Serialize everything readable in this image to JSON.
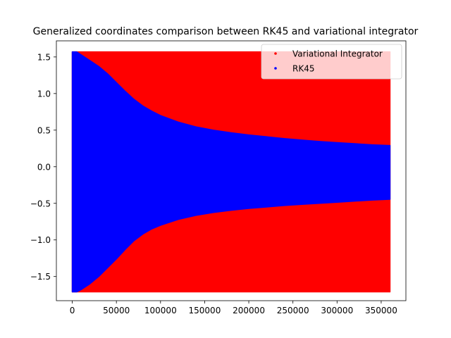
{
  "chart_data": {
    "type": "scatter",
    "title": "Generalized coordinates comparison between RK45 and variational integrator",
    "xlabel": "",
    "ylabel": "",
    "xlim": [
      -18000,
      378000
    ],
    "ylim": [
      -1.83,
      1.72
    ],
    "x_ticks": [
      0,
      50000,
      100000,
      150000,
      200000,
      250000,
      300000,
      350000
    ],
    "x_tick_labels": [
      "0",
      "50000",
      "100000",
      "150000",
      "200000",
      "250000",
      "300000",
      "350000"
    ],
    "y_ticks": [
      1.5,
      1.0,
      0.5,
      0.0,
      -0.5,
      -1.0,
      -1.5
    ],
    "y_tick_labels": [
      "1.5",
      "1.0",
      "0.5",
      "0.0",
      "−0.5",
      "−1.0",
      "−1.5"
    ],
    "grid": false,
    "legend": {
      "placement": "top-right"
    },
    "series": [
      {
        "name": "Variational Integrator",
        "color": "#ff0000",
        "marker": "point",
        "rendered_as": "dense oscillation band",
        "x": [
          0,
          360000
        ],
        "upper": [
          1.57,
          1.57
        ],
        "lower": [
          -1.71,
          -1.71
        ]
      },
      {
        "name": "RK45",
        "color": "#0000ff",
        "marker": "point",
        "rendered_as": "dense oscillation band with decaying amplitude",
        "x": [
          0,
          5000,
          10000,
          20000,
          30000,
          40000,
          50000,
          60000,
          70000,
          80000,
          90000,
          100000,
          120000,
          140000,
          160000,
          180000,
          200000,
          220000,
          240000,
          260000,
          280000,
          300000,
          320000,
          340000,
          360000
        ],
        "upper": [
          1.57,
          1.57,
          1.53,
          1.45,
          1.37,
          1.27,
          1.15,
          1.03,
          0.92,
          0.83,
          0.76,
          0.7,
          0.61,
          0.545,
          0.5,
          0.465,
          0.435,
          0.41,
          0.385,
          0.365,
          0.345,
          0.33,
          0.315,
          0.3,
          0.29
        ],
        "lower": [
          -1.71,
          -1.71,
          -1.68,
          -1.6,
          -1.5,
          -1.38,
          -1.26,
          -1.13,
          -1.01,
          -0.92,
          -0.85,
          -0.8,
          -0.72,
          -0.665,
          -0.625,
          -0.595,
          -0.57,
          -0.55,
          -0.53,
          -0.515,
          -0.5,
          -0.485,
          -0.47,
          -0.455,
          -0.445
        ]
      }
    ]
  }
}
